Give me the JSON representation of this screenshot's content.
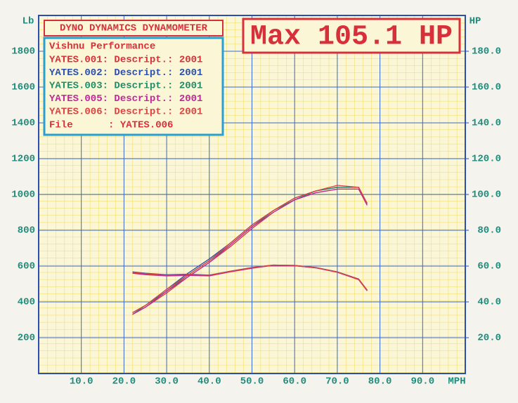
{
  "chart_data": {
    "type": "line",
    "header": "DYNO DYNAMICS DYNAMOMETER",
    "max_label": "Max 105.1 HP",
    "shop": "Vishnu Performance",
    "file_label": "File      : YATES.006",
    "xlabel": "MPH",
    "ylabel": "Lb",
    "y2label": "HP",
    "xlim": [
      0,
      100
    ],
    "ylim": [
      0,
      2000
    ],
    "y2lim": [
      0,
      200
    ],
    "xticks": [
      {
        "value": 10,
        "label": "10.0"
      },
      {
        "value": 20,
        "label": "20.0"
      },
      {
        "value": 30,
        "label": "30.0"
      },
      {
        "value": 40,
        "label": "40.0"
      },
      {
        "value": 50,
        "label": "50.0"
      },
      {
        "value": 60,
        "label": "60.0"
      },
      {
        "value": 70,
        "label": "70.0"
      },
      {
        "value": 80,
        "label": "80.0"
      },
      {
        "value": 90,
        "label": "90.0"
      }
    ],
    "yticks": [
      200,
      400,
      600,
      800,
      1000,
      1200,
      1400,
      1600,
      1800
    ],
    "y2ticks": [
      {
        "value": 20,
        "label": "20.0"
      },
      {
        "value": 40,
        "label": "40.0"
      },
      {
        "value": 60,
        "label": "60.0"
      },
      {
        "value": 80,
        "label": "80.0"
      },
      {
        "value": 100,
        "label": "100.0"
      },
      {
        "value": 120,
        "label": "120.0"
      },
      {
        "value": 140,
        "label": "140.0"
      },
      {
        "value": 160,
        "label": "160.0"
      },
      {
        "value": 180,
        "label": "180.0"
      }
    ],
    "grid": true,
    "x": [
      22,
      25,
      30,
      35,
      40,
      45,
      50,
      55,
      60,
      65,
      70,
      75,
      77
    ],
    "series": [
      {
        "name": "YATES.001: Descript.: 2001",
        "color": "#d8303a",
        "lb": [
          560,
          552,
          545,
          548,
          545,
          568,
          588,
          604,
          602,
          590,
          566,
          524,
          462
        ],
        "hp": [
          33,
          37,
          45,
          54,
          62,
          71,
          81,
          90,
          97,
          101,
          103,
          103,
          94
        ]
      },
      {
        "name": "YATES.002: Descript.: 2001",
        "color": "#2a4fb0",
        "lb": [
          568,
          560,
          552,
          555,
          550,
          572,
          592,
          606,
          604,
          592,
          568,
          528,
          466
        ],
        "hp": [
          34,
          38,
          47,
          56,
          64,
          73,
          83,
          91,
          98,
          102,
          104,
          104,
          95
        ]
      },
      {
        "name": "YATES.003: Descript.: 2001",
        "color": "#1f8c6a",
        "lb": [
          565,
          557,
          549,
          552,
          548,
          570,
          590,
          605,
          603,
          591,
          567,
          526,
          464
        ],
        "hp": [
          33,
          38,
          46,
          55,
          63,
          72,
          82,
          91,
          97,
          102,
          104,
          104,
          95
        ]
      },
      {
        "name": "YATES.005: Descript.: 2001",
        "color": "#c0289a",
        "lb": [
          562,
          554,
          546,
          550,
          546,
          569,
          589,
          605,
          602,
          590,
          565,
          525,
          463
        ],
        "hp": [
          33,
          37,
          46,
          54,
          62,
          72,
          82,
          90,
          97,
          101,
          103,
          103,
          94
        ]
      },
      {
        "name": "YATES.006: Descript.: 2001",
        "color": "#e04040",
        "lb": [
          566,
          558,
          550,
          553,
          549,
          571,
          591,
          606,
          604,
          591,
          567,
          527,
          465
        ],
        "hp": [
          34,
          38,
          47,
          55,
          63,
          73,
          83,
          91,
          98,
          102,
          105.1,
          104,
          95
        ]
      }
    ]
  }
}
